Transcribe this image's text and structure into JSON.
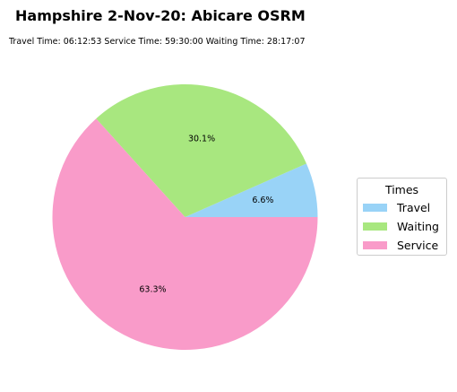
{
  "chart_data": {
    "type": "pie",
    "title": "Hampshire 2-Nov-20: Abicare OSRM",
    "subtitle": "Travel Time: 06:12:53  Service Time: 59:30:00  Waiting Time: 28:17:07",
    "legend": {
      "title": "Times",
      "placement": "right"
    },
    "slices": [
      {
        "label": "Travel",
        "value": 6.6,
        "pct_label": "6.6%",
        "color": "#99d3f7"
      },
      {
        "label": "Waiting",
        "value": 30.1,
        "pct_label": "30.1%",
        "color": "#a8e77f"
      },
      {
        "label": "Service",
        "value": 63.3,
        "pct_label": "63.3%",
        "color": "#f99bc9"
      }
    ]
  }
}
